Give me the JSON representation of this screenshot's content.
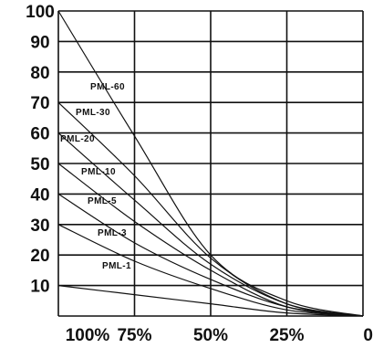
{
  "chart_data": {
    "type": "line",
    "title": "",
    "xlabel": "",
    "ylabel": "",
    "x_tick_labels": [
      "100%",
      "75%",
      "50%",
      "25%",
      "0"
    ],
    "x_ticks": [
      100,
      75,
      50,
      25,
      0
    ],
    "y_ticks": [
      10,
      20,
      30,
      40,
      50,
      60,
      70,
      80,
      90,
      100
    ],
    "y_tick_labels": [
      "10",
      "20",
      "30",
      "40",
      "50",
      "60",
      "70",
      "80",
      "90",
      "100"
    ],
    "xlim": [
      100,
      0
    ],
    "ylim": [
      0,
      100
    ],
    "grid": true,
    "legend": "inline-labels",
    "series": [
      {
        "name": "PML-60",
        "x": [
          100,
          75,
          50,
          25,
          0
        ],
        "y": [
          100,
          59,
          20,
          5,
          0
        ]
      },
      {
        "name": "PML-30",
        "x": [
          100,
          75,
          50,
          25,
          0
        ],
        "y": [
          70,
          46,
          19,
          4,
          0
        ]
      },
      {
        "name": "PML-20",
        "x": [
          100,
          75,
          50,
          25,
          0
        ],
        "y": [
          60,
          38,
          17,
          4,
          0
        ]
      },
      {
        "name": "PML-10",
        "x": [
          100,
          75,
          50,
          25,
          0
        ],
        "y": [
          50,
          31,
          15,
          3,
          0
        ]
      },
      {
        "name": "PML-5",
        "x": [
          100,
          75,
          50,
          25,
          0
        ],
        "y": [
          40,
          24,
          12,
          3,
          0
        ]
      },
      {
        "name": "PML-3",
        "x": [
          100,
          75,
          50,
          25,
          0
        ],
        "y": [
          30,
          18,
          9,
          2,
          0
        ]
      },
      {
        "name": "PML-1",
        "x": [
          100,
          75,
          50,
          25,
          0
        ],
        "y": [
          10,
          7,
          4,
          1,
          0
        ]
      }
    ]
  }
}
